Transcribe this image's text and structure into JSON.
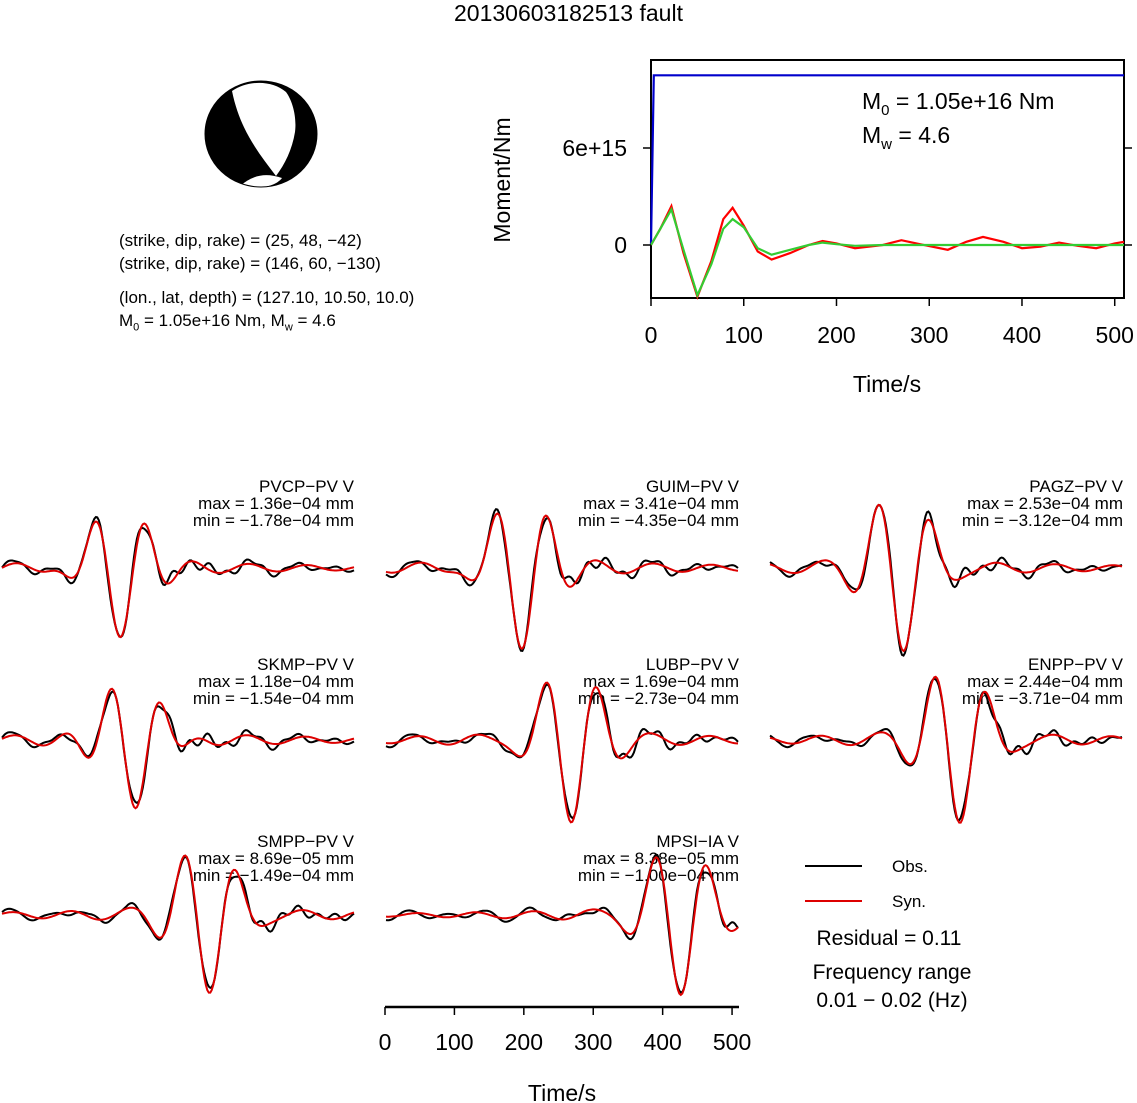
{
  "title": "20130603182513 fault",
  "focal": {
    "line1": "(strike, dip, rake) = (25, 48, −42)",
    "line2": "(strike, dip, rake) = (146, 60, −130)",
    "line3": "(lon., lat, depth) = (127.10, 10.50, 10.0)",
    "line4_m0": "M",
    "line4_sub0": "0",
    "line4_mid": " = 1.05e+16 Nm, M",
    "line4_subw": "w",
    "line4_end": " = 4.6"
  },
  "chart_data": [
    {
      "type": "line",
      "ylabel": "Moment/Nm",
      "xlabel": "Time/s",
      "xlim": [
        0,
        510
      ],
      "x_ticks": [
        "0",
        "100",
        "200",
        "300",
        "400",
        "500"
      ],
      "y_ticks": [
        "0",
        "6e+15"
      ],
      "annotation_m0": "M",
      "annotation_m0_sub": "0",
      "annotation_m0_val": " = 1.05e+16 Nm",
      "annotation_mw": "M",
      "annotation_mw_sub": "w",
      "annotation_mw_val": " = 4.6",
      "series": [
        {
          "color": "#0000cc",
          "x": [
            0,
            3,
            5,
            510
          ],
          "y": [
            0,
            1.05e+16,
            1.05e+16,
            1.05e+16
          ]
        },
        {
          "color": "#ff0000",
          "x": [
            0,
            10,
            22,
            35,
            50,
            65,
            78,
            88,
            100,
            115,
            130,
            150,
            170,
            185,
            200,
            220,
            250,
            270,
            290,
            320,
            340,
            358,
            380,
            400,
            420,
            440,
            460,
            480,
            500,
            510
          ],
          "y": [
            0,
            1000000000000000.0,
            2400000000000000.0,
            -500000000000000.0,
            -3200000000000000.0,
            -1000000000000000.0,
            1600000000000000.0,
            2300000000000000.0,
            1200000000000000.0,
            -400000000000000.0,
            -900000000000000.0,
            -500000000000000.0,
            0.0,
            250000000000000.0,
            100000000000000.0,
            -200000000000000.0,
            0.0,
            300000000000000.0,
            50000000000000.0,
            -300000000000000.0,
            200000000000000.0,
            500000000000000.0,
            200000000000000.0,
            -200000000000000.0,
            -100000000000000.0,
            150000000000000.0,
            -50000000000000.0,
            -200000000000000.0,
            100000000000000.0,
            200000000000000.0
          ]
        },
        {
          "color": "#33cc33",
          "x": [
            0,
            10,
            22,
            35,
            50,
            65,
            78,
            88,
            100,
            115,
            130,
            150,
            170,
            185,
            200,
            220,
            250,
            300,
            350,
            400,
            450,
            510
          ],
          "y": [
            0,
            1000000000000000.0,
            2200000000000000.0,
            -300000000000000.0,
            -3100000000000000.0,
            -1200000000000000.0,
            1000000000000000.0,
            1600000000000000.0,
            1100000000000000.0,
            -200000000000000.0,
            -600000000000000.0,
            -300000000000000.0,
            0.0,
            150000000000000.0,
            50000000000000.0,
            -50000000000000.0,
            0.0,
            0.0,
            0.0,
            0.0,
            0.0,
            0.0
          ]
        }
      ]
    }
  ],
  "stations": [
    {
      "name": "PVCP−PV V",
      "max": "max = 1.36e−04 mm",
      "min": "min = −1.78e−04 mm"
    },
    {
      "name": "GUIM−PV V",
      "max": "max = 3.41e−04 mm",
      "min": "min = −4.35e−04 mm"
    },
    {
      "name": "PAGZ−PV V",
      "max": "max = 2.53e−04 mm",
      "min": "min = −3.12e−04 mm"
    },
    {
      "name": "SKMP−PV V",
      "max": "max = 1.18e−04 mm",
      "min": "min = −1.54e−04 mm"
    },
    {
      "name": "LUBP−PV V",
      "max": "max = 1.69e−04 mm",
      "min": "min = −2.73e−04 mm"
    },
    {
      "name": "ENPP−PV V",
      "max": "max = 2.44e−04 mm",
      "min": "min = −3.71e−04 mm"
    },
    {
      "name": "SMPP−PV V",
      "max": "max = 8.69e−05 mm",
      "min": "min = −1.49e−04 mm"
    },
    {
      "name": "MPSI−IA V",
      "max": "max = 8.38e−05 mm",
      "min": "min = −1.00e−04 mm"
    }
  ],
  "bottom_axis": {
    "xlabel": "Time/s",
    "ticks": [
      "0",
      "100",
      "200",
      "300",
      "400",
      "500"
    ]
  },
  "legend": {
    "obs": "Obs.",
    "syn": "Syn.",
    "obs_color": "#000000",
    "syn_color": "#dd0000"
  },
  "residual": "Residual = 0.11",
  "freq_label": "Frequency range",
  "freq_value": "0.01 − 0.02 (Hz)"
}
